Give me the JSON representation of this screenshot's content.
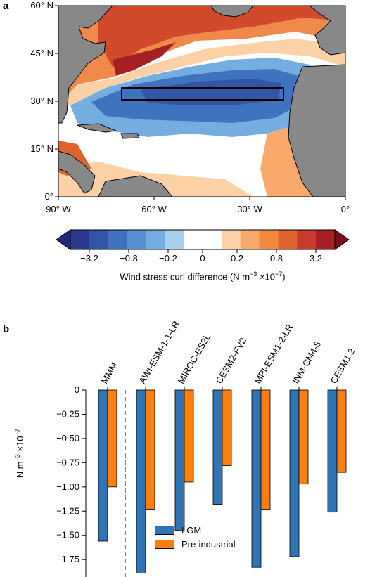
{
  "panel_a": {
    "label": "a",
    "lat_ticks": [
      "60° N",
      "45° N",
      "30° N",
      "15° N",
      "0°"
    ],
    "lon_ticks": [
      "90° W",
      "60° W",
      "30° W",
      "0°"
    ],
    "colorbar": {
      "tick_labels": [
        "−3.2",
        "−0.8",
        "−0.2",
        "0",
        "0.2",
        "0.8",
        "3.2"
      ],
      "label": "Wind stress curl difference (N m",
      "label_sup1": "−3",
      "label_mid": " ×10",
      "label_sup2": "−7",
      "label_end": ")",
      "colors": [
        "#2b3a8f",
        "#3355a8",
        "#3f72bf",
        "#5690d0",
        "#74addf",
        "#a8d1ee",
        "#ffffff",
        "#ffffff",
        "#fcd1a6",
        "#f9aa6a",
        "#f28a3e",
        "#e0622e",
        "#c93b2c",
        "#a51f23"
      ]
    },
    "colors": {
      "land": "#888888",
      "positive": "#d9552a",
      "negative": "#3f72bf"
    }
  },
  "panel_b": {
    "label": "b",
    "ylabel_base": "N m",
    "ylabel_sup1": "−3",
    "ylabel_mid": " ×10",
    "ylabel_sup2": "−7",
    "legend": [
      "LGM",
      "Pre-industrial"
    ]
  },
  "chart_data": {
    "type": "bar",
    "categories": [
      "MMM",
      "AWI-ESM-1-1-LR",
      "MIROC-ES2L",
      "CESM2-FV2",
      "MPI-ESM1-2-LR",
      "INM-CM4-8",
      "CESM1.2"
    ],
    "series": [
      {
        "name": "LGM",
        "color": "#2f74b5",
        "values": [
          -1.56,
          -1.89,
          -1.45,
          -1.18,
          -1.83,
          -1.72,
          -1.26
        ]
      },
      {
        "name": "Pre-industrial",
        "color": "#ff7f0e",
        "values": [
          -1.0,
          -1.23,
          -0.95,
          -0.78,
          -1.23,
          -0.97,
          -0.85
        ]
      }
    ],
    "yticks": [
      "0",
      "−0.25",
      "−0.50",
      "−0.75",
      "−1.00",
      "−1.25",
      "−1.50",
      "−1.75"
    ],
    "ylim": [
      -1.93,
      0
    ],
    "legend_position": "bottom-center"
  }
}
